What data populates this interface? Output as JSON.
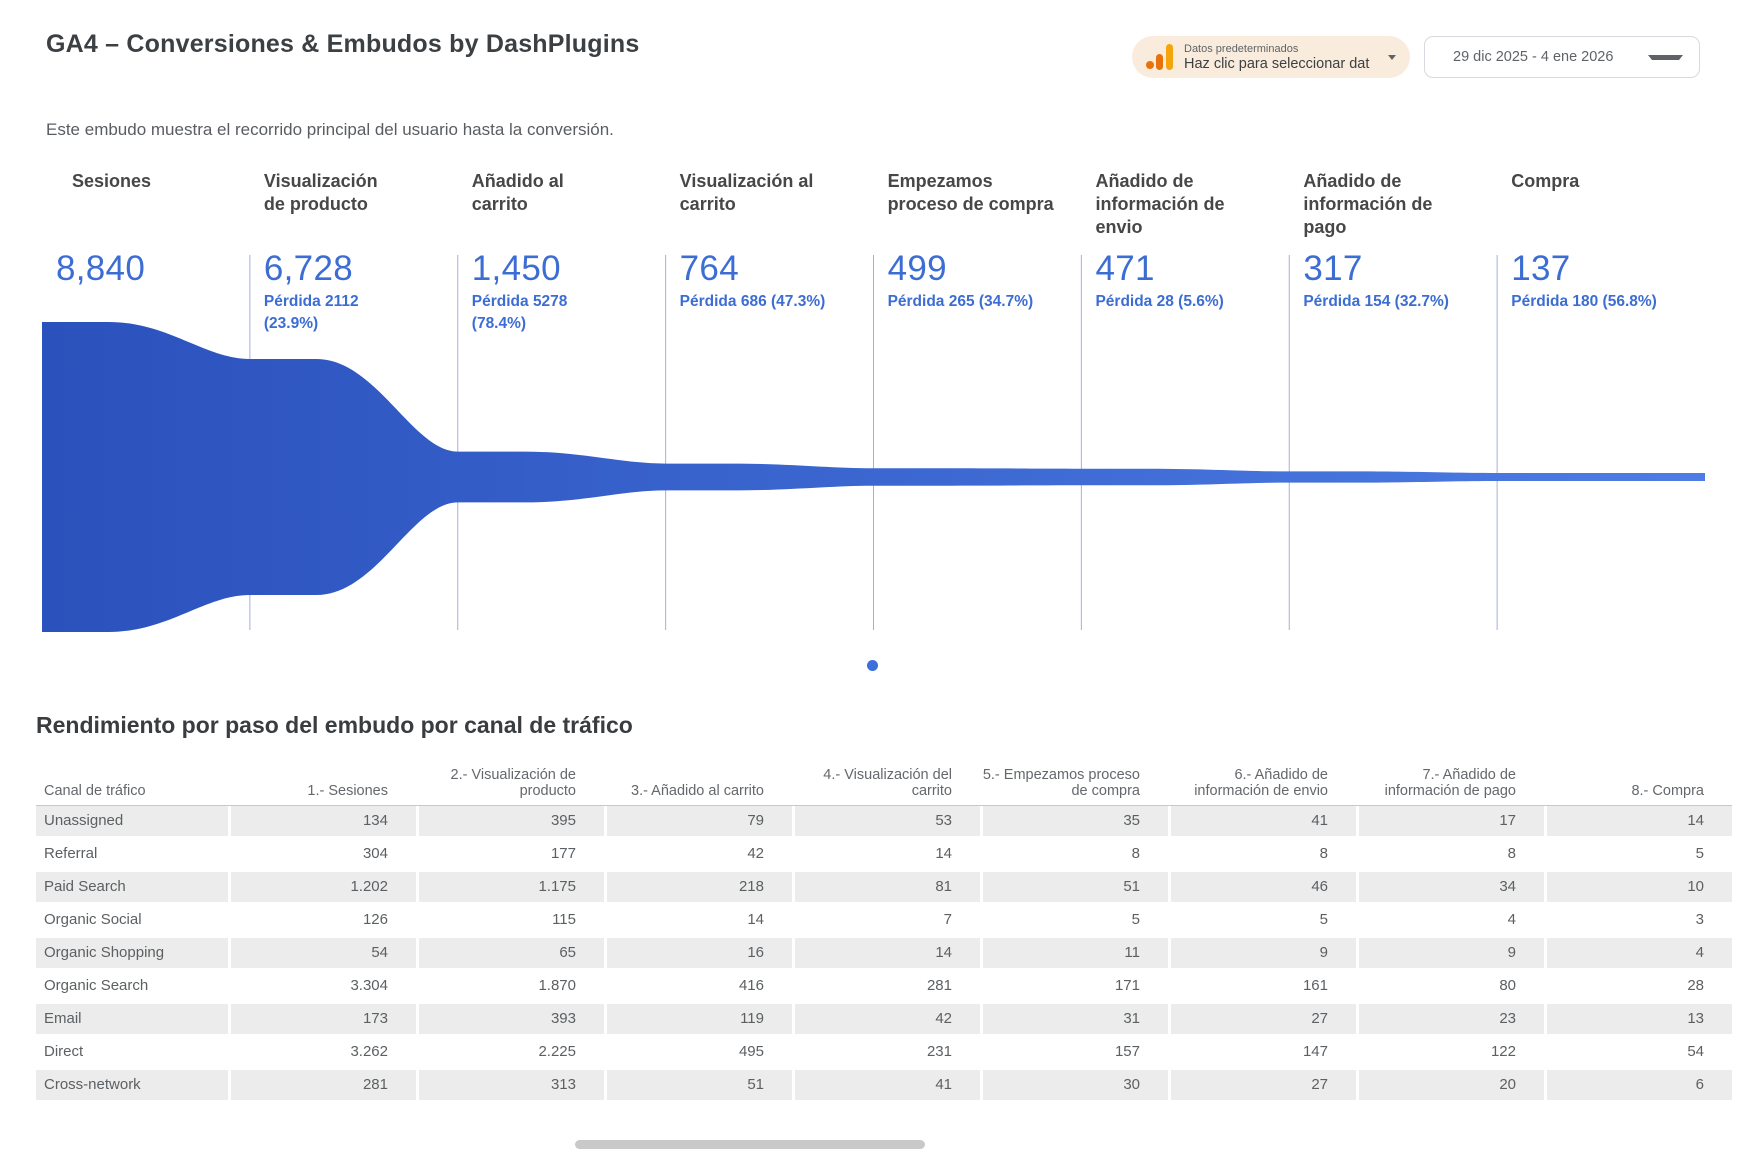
{
  "header": {
    "title": "GA4 – Conversiones & Embudos by DashPlugins",
    "data_source": {
      "icon": "analytics-bars-icon",
      "label_small": "Datos predeterminados",
      "label_main": "Haz clic para seleccionar dat"
    },
    "date_range": "29 dic 2025 - 4 ene 2026"
  },
  "funnel": {
    "subtitle": "Este embudo muestra el recorrido principal del usuario hasta la conversión.",
    "steps": [
      {
        "label": "Sesiones",
        "value": 8840,
        "display": "8,840",
        "loss": null
      },
      {
        "label": "Visualización de producto",
        "value": 6728,
        "display": "6,728",
        "loss": "Pérdida 2112 (23.9%)"
      },
      {
        "label": "Añadido al carrito",
        "value": 1450,
        "display": "1,450",
        "loss": "Pérdida 5278 (78.4%)"
      },
      {
        "label": "Visualización al carrito",
        "value": 764,
        "display": "764",
        "loss": "Pérdida 686 (47.3%)"
      },
      {
        "label": "Empezamos proceso de compra",
        "value": 499,
        "display": "499",
        "loss": "Pérdida 265 (34.7%)"
      },
      {
        "label": "Añadido de información de envio",
        "value": 471,
        "display": "471",
        "loss": "Pérdida 28 (5.6%)"
      },
      {
        "label": "Añadido de información de pago",
        "value": 317,
        "display": "317",
        "loss": "Pérdida 154 (32.7%)"
      },
      {
        "label": "Compra",
        "value": 137,
        "display": "137",
        "loss": "Pérdida 180 (56.8%)"
      }
    ]
  },
  "table": {
    "title": "Rendimiento por paso del embudo por canal de tráfico",
    "columns": [
      "Canal de tráfico",
      "1.- Sesiones",
      "2.- Visualización de producto",
      "3.- Añadido al carrito",
      "4.- Visualización del carrito",
      "5.- Empezamos proceso de compra",
      "6.- Añadido de información de envio",
      "7.- Añadido de información de pago",
      "8.- Compra"
    ],
    "rows": [
      {
        "channel": "Unassigned",
        "values": [
          "134",
          "395",
          "79",
          "53",
          "35",
          "41",
          "17",
          "14"
        ]
      },
      {
        "channel": "Referral",
        "values": [
          "304",
          "177",
          "42",
          "14",
          "8",
          "8",
          "8",
          "5"
        ]
      },
      {
        "channel": "Paid Search",
        "values": [
          "1.202",
          "1.175",
          "218",
          "81",
          "51",
          "46",
          "34",
          "10"
        ]
      },
      {
        "channel": "Organic Social",
        "values": [
          "126",
          "115",
          "14",
          "7",
          "5",
          "5",
          "4",
          "3"
        ]
      },
      {
        "channel": "Organic Shopping",
        "values": [
          "54",
          "65",
          "16",
          "14",
          "11",
          "9",
          "9",
          "4"
        ]
      },
      {
        "channel": "Organic Search",
        "values": [
          "3.304",
          "1.870",
          "416",
          "281",
          "171",
          "161",
          "80",
          "28"
        ]
      },
      {
        "channel": "Email",
        "values": [
          "173",
          "393",
          "119",
          "42",
          "31",
          "27",
          "23",
          "13"
        ]
      },
      {
        "channel": "Direct",
        "values": [
          "3.262",
          "2.225",
          "495",
          "231",
          "157",
          "147",
          "122",
          "54"
        ]
      },
      {
        "channel": "Cross-network",
        "values": [
          "281",
          "313",
          "51",
          "41",
          "30",
          "27",
          "20",
          "6"
        ]
      }
    ]
  },
  "colors": {
    "funnel_gradient_start": "#2b51bc",
    "funnel_gradient_end": "#4c7ce4",
    "metric_blue": "#3c6dd3",
    "divider": "#a8ade0",
    "chip_bg": "#faecdd",
    "ga_orange": "#e8710a",
    "ga_amber": "#f4a50c",
    "row_alt_bg": "#ececec",
    "pagination_dot": "#3e6fd8"
  },
  "chart_data": [
    {
      "type": "area",
      "subtype": "smooth-funnel",
      "title": "Este embudo muestra el recorrido principal del usuario hasta la conversión.",
      "categories": [
        "Sesiones",
        "Visualización de producto",
        "Añadido al carrito",
        "Visualización al carrito",
        "Empezamos proceso de compra",
        "Añadido de información de envio",
        "Añadido de información de pago",
        "Compra"
      ],
      "values": [
        8840,
        6728,
        1450,
        764,
        499,
        471,
        317,
        137
      ],
      "data_labels": [
        "8,840",
        "6,728",
        "1,450",
        "764",
        "499",
        "471",
        "317",
        "137"
      ],
      "loss_labels": [
        "",
        "Pérdida 2112 (23.9%)",
        "Pérdida 5278 (78.4%)",
        "Pérdida 686 (47.3%)",
        "Pérdida 265 (34.7%)",
        "Pérdida 28 (5.6%)",
        "Pérdida 154 (32.7%)",
        "Pérdida 180 (56.8%)"
      ],
      "legend": false,
      "grid": false
    },
    {
      "type": "table",
      "title": "Rendimiento por paso del embudo por canal de tráfico",
      "columns": [
        "Canal de tráfico",
        "1.- Sesiones",
        "2.- Visualización de producto",
        "3.- Añadido al carrito",
        "4.- Visualización del carrito",
        "5.- Empezamos proceso de compra",
        "6.- Añadido de información de envio",
        "7.- Añadido de información de pago",
        "8.- Compra"
      ],
      "rows": [
        [
          "Unassigned",
          134,
          395,
          79,
          53,
          35,
          41,
          17,
          14
        ],
        [
          "Referral",
          304,
          177,
          42,
          14,
          8,
          8,
          8,
          5
        ],
        [
          "Paid Search",
          1202,
          1175,
          218,
          81,
          51,
          46,
          34,
          10
        ],
        [
          "Organic Social",
          126,
          115,
          14,
          7,
          5,
          5,
          4,
          3
        ],
        [
          "Organic Shopping",
          54,
          65,
          16,
          14,
          11,
          9,
          9,
          4
        ],
        [
          "Organic Search",
          3304,
          1870,
          416,
          281,
          171,
          161,
          80,
          28
        ],
        [
          "Email",
          173,
          393,
          119,
          42,
          31,
          27,
          23,
          13
        ],
        [
          "Direct",
          3262,
          2225,
          495,
          231,
          157,
          147,
          122,
          54
        ],
        [
          "Cross-network",
          281,
          313,
          51,
          41,
          30,
          27,
          20,
          6
        ]
      ]
    }
  ]
}
